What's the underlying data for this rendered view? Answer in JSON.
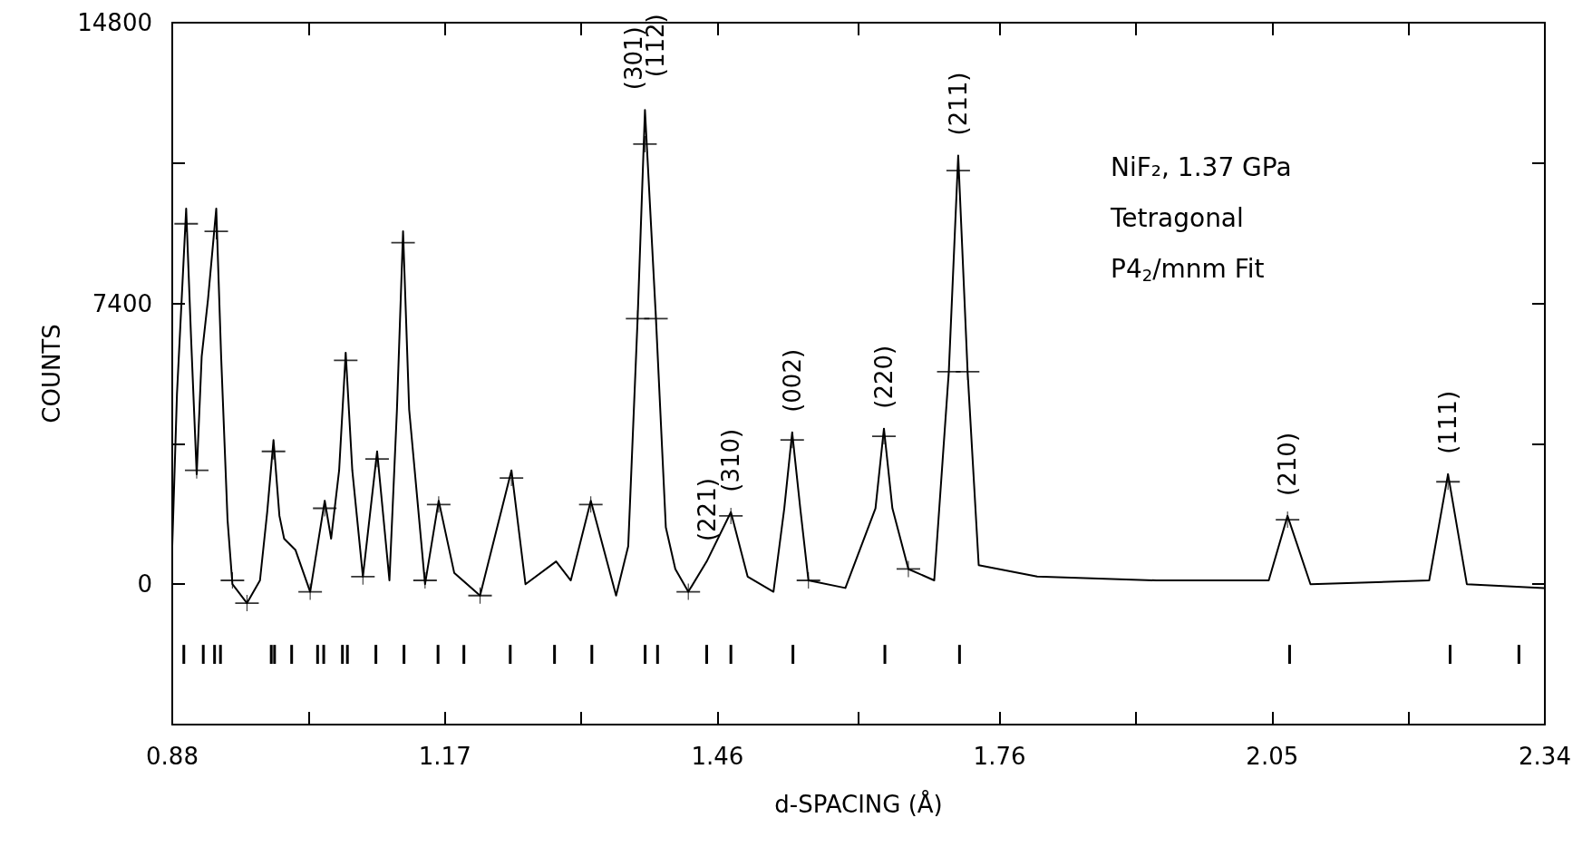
{
  "chart_data": {
    "type": "line",
    "xlabel": "d-SPACING (Å)",
    "ylabel": "COUNTS",
    "xlim": [
      0.88,
      2.34
    ],
    "xticks": [
      0.88,
      {
        "value": 1.025,
        "label": null
      },
      1.17,
      {
        "value": 1.315,
        "label": null
      },
      1.46,
      {
        "value": 1.61,
        "label": null
      },
      1.76,
      {
        "value": 1.905,
        "label": null
      },
      2.05,
      {
        "value": 2.195,
        "label": null
      },
      2.34
    ],
    "ylim": [
      -3700,
      14800
    ],
    "yticks": [
      0,
      {
        "value": 3700,
        "label": null
      },
      7400,
      {
        "value": 11100,
        "label": null
      },
      14800
    ],
    "series": [
      {
        "color": "#000000",
        "marker": "none",
        "line_style": "solid",
        "x": [
          0.88,
          0.885,
          0.8948,
          0.9,
          0.906,
          0.9113,
          0.918,
          0.9268,
          0.932,
          0.9388,
          0.944,
          0.9595,
          0.9733,
          0.981,
          0.9877,
          0.994,
          0.999,
          1.0111,
          1.0267,
          1.0422,
          1.049,
          1.0575,
          1.0645,
          1.0715,
          1.0828,
          1.0979,
          1.111,
          1.119,
          1.1255,
          1.132,
          1.1489,
          1.1634,
          1.1799,
          1.2074,
          1.2408,
          1.2557,
          1.2883,
          1.3039,
          1.3252,
          1.3521,
          1.365,
          1.375,
          1.3828,
          1.3945,
          1.405,
          1.4151,
          1.4289,
          1.4485,
          1.4742,
          1.492,
          1.5195,
          1.531,
          1.5394,
          1.548,
          1.5567,
          1.596,
          1.628,
          1.637,
          1.646,
          1.663,
          1.6905,
          1.706,
          1.716,
          1.726,
          1.7378,
          1.8,
          1.9267,
          2.0463,
          2.0663,
          2.0907,
          2.217,
          2.237,
          2.257,
          2.339
        ],
        "values": [
          1000,
          5000,
          9900,
          6500,
          2900,
          6000,
          7500,
          9900,
          6000,
          1700,
          0,
          -500,
          100,
          1900,
          3800,
          1800,
          1200,
          900,
          -200,
          2200,
          1200,
          3000,
          6100,
          3000,
          200,
          3500,
          100,
          4600,
          9300,
          4600,
          0,
          2200,
          300,
          -300,
          3000,
          0,
          600,
          100,
          2200,
          -300,
          1000,
          7000,
          12500,
          7000,
          1500,
          400,
          -200,
          600,
          1900,
          200,
          -200,
          2000,
          4000,
          2000,
          100,
          -100,
          2000,
          4100,
          2000,
          400,
          100,
          5600,
          11300,
          5600,
          500,
          200,
          100,
          100,
          1800,
          0,
          100,
          2900,
          0,
          -100
        ]
      },
      {
        "type": "scatter",
        "color": "#000000",
        "marker": "cross",
        "x": [
          0.8948,
          0.906,
          0.9268,
          0.944,
          0.9595,
          0.9877,
          1.0267,
          1.0422,
          1.0645,
          1.0828,
          1.0979,
          1.1255,
          1.1489,
          1.1634,
          1.2074,
          1.2408,
          1.3252,
          1.375,
          1.3828,
          1.3945,
          1.4289,
          1.4742,
          1.5394,
          1.5567,
          1.637,
          1.663,
          1.706,
          1.716,
          1.726,
          2.0663,
          2.237
        ],
        "values": [
          9500,
          3000,
          9300,
          100,
          -500,
          3500,
          -200,
          2000,
          5900,
          200,
          3300,
          9000,
          100,
          2100,
          -300,
          2800,
          2100,
          7000,
          11600,
          7000,
          -200,
          1800,
          3800,
          100,
          3900,
          400,
          5600,
          10900,
          5600,
          1700,
          2700
        ]
      },
      {
        "type": "bar",
        "color": "#000000",
        "x": [
          0.8923,
          0.913,
          0.925,
          0.9313,
          0.9853,
          0.9888,
          1.007,
          1.0346,
          1.0411,
          1.061,
          1.0663,
          1.0966,
          1.1265,
          1.1627,
          1.1902,
          1.2395,
          1.2866,
          1.3263,
          1.383,
          1.3962,
          1.4485,
          1.4742,
          1.5402,
          1.638,
          1.7174,
          2.0685,
          2.2392,
          2.3124
        ],
        "base": [
          -2100,
          -2100,
          -2100,
          -2100,
          -2100,
          -2100,
          -2100,
          -2100,
          -2100,
          -2100,
          -2100,
          -2100,
          -2100,
          -2100,
          -2100,
          -2100,
          -2100,
          -2100,
          -2100,
          -2100,
          -2100,
          -2100,
          -2100,
          -2100,
          -2100,
          -2100,
          -2100,
          -2100
        ],
        "values": [
          500,
          500,
          500,
          500,
          500,
          500,
          500,
          500,
          500,
          500,
          500,
          500,
          500,
          500,
          500,
          500,
          500,
          500,
          500,
          500,
          500,
          500,
          500,
          500,
          500,
          500,
          500,
          500
        ]
      }
    ],
    "annotations": [
      {
        "text": "(301)",
        "x": 1.3828,
        "y": 12500
      },
      {
        "text": "(112)",
        "x": 1.3828,
        "y": 12500
      },
      {
        "text": "(221)",
        "x": 1.4485,
        "y": 600
      },
      {
        "text": "(310)",
        "x": 1.4742,
        "y": 1900
      },
      {
        "text": "(002)",
        "x": 1.5394,
        "y": 4000
      },
      {
        "text": "(220)",
        "x": 1.637,
        "y": 4100
      },
      {
        "text": "(211)",
        "x": 1.716,
        "y": 11300
      },
      {
        "text": "(210)",
        "x": 2.0663,
        "y": 1800
      },
      {
        "text": "(111)",
        "x": 2.237,
        "y": 2900
      },
      "NiF₂, 1.37 GPa",
      "Tetragonal",
      "P4$_{2}$/mnm Fit"
    ]
  }
}
